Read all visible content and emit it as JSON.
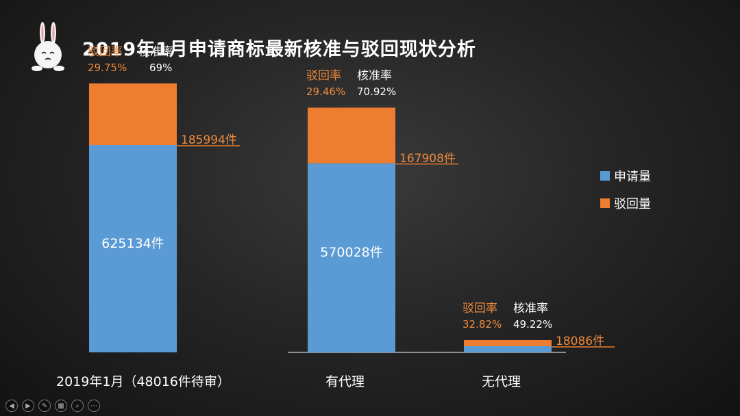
{
  "title": "2019年1月申请商标最新核准与驳回现状分析",
  "colors": {
    "apply": "#5b9bd5",
    "reject": "#ed7d31",
    "reject_text": "#ee8a3c",
    "text": "#ffffff"
  },
  "legend": {
    "apply_label": "申请量",
    "reject_label": "驳回量"
  },
  "rate_headers": {
    "reject": "驳回率",
    "approve": "核准率"
  },
  "chart_data": {
    "type": "bar",
    "stacked": true,
    "categories": [
      "2019年1月（48016件待审）",
      "有代理",
      "无代理"
    ],
    "series": [
      {
        "name": "申请量",
        "values": [
          625134,
          570028,
          18086
        ]
      },
      {
        "name": "驳回量",
        "values": [
          185994,
          167908,
          5936
        ]
      }
    ],
    "apply_labels": [
      "625134件",
      "570028件",
      ""
    ],
    "reject_labels": [
      "185994件",
      "167908件",
      "18086件"
    ],
    "reject_rates": [
      "29.75%",
      "29.46%",
      "32.82%"
    ],
    "approve_rates": [
      "69%",
      "70.92%",
      "49.22%"
    ],
    "legend_position": "right",
    "grid": false
  },
  "toolbar": {
    "buttons": [
      {
        "icon": "prev-icon",
        "glyph": "◀"
      },
      {
        "icon": "next-icon",
        "glyph": "▶"
      },
      {
        "icon": "pen-icon",
        "glyph": "✎"
      },
      {
        "icon": "slides-icon",
        "glyph": "▦"
      },
      {
        "icon": "zoom-icon",
        "glyph": "⌕"
      },
      {
        "icon": "more-icon",
        "glyph": "⋯"
      }
    ]
  }
}
